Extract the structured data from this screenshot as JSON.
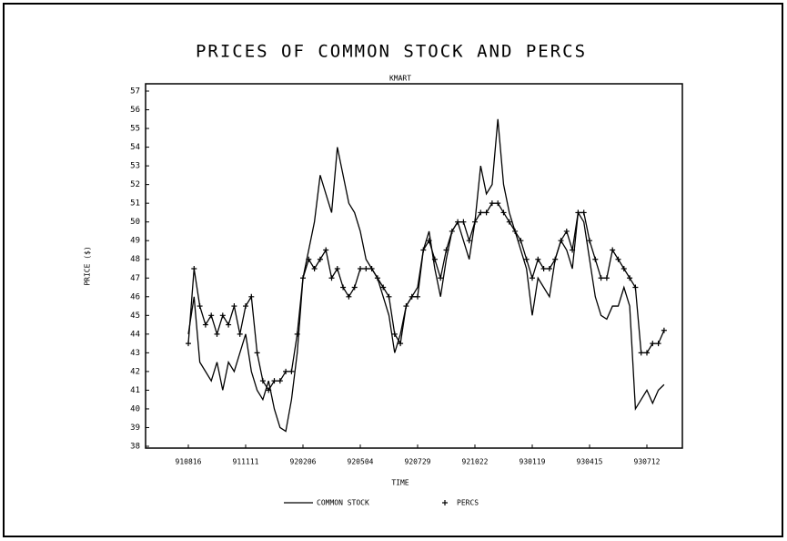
{
  "chart_data": {
    "type": "line",
    "title": "PRICES OF COMMON STOCK AND PERCS",
    "subtitle": "KMART",
    "x_label": "TIME",
    "y_label": "PRICE ($)",
    "categories": [
      "910816",
      null,
      null,
      null,
      null,
      null,
      null,
      null,
      null,
      null,
      "911111",
      null,
      null,
      null,
      null,
      null,
      null,
      null,
      null,
      null,
      "920206",
      null,
      null,
      null,
      null,
      null,
      null,
      null,
      null,
      null,
      "920504",
      null,
      null,
      null,
      null,
      null,
      null,
      null,
      null,
      null,
      "920729",
      null,
      null,
      null,
      null,
      null,
      null,
      null,
      null,
      null,
      "921022",
      null,
      null,
      null,
      null,
      null,
      null,
      null,
      null,
      null,
      "930119",
      null,
      null,
      null,
      null,
      null,
      null,
      null,
      null,
      null,
      "930415",
      null,
      null,
      null,
      null,
      null,
      null,
      null,
      null,
      null,
      "930712",
      null,
      null,
      null
    ],
    "series": [
      {
        "name": "COMMON STOCK",
        "color": "#000000",
        "marker": "none",
        "values": [
          44,
          46,
          42.5,
          42,
          41.5,
          42.5,
          41,
          42.5,
          42,
          43,
          44,
          42,
          41,
          40.5,
          41.5,
          40,
          39,
          38.8,
          40.5,
          43,
          47,
          48.5,
          50,
          52.5,
          51.5,
          50.5,
          54,
          52.5,
          51,
          50.5,
          49.5,
          48,
          47.5,
          47,
          46,
          45,
          43,
          44,
          45.5,
          46,
          46.5,
          48.5,
          49.5,
          47.5,
          46,
          48,
          49.5,
          50,
          49,
          48,
          50,
          53,
          51.5,
          52,
          55.5,
          52,
          50.5,
          49.5,
          48.5,
          47.5,
          45,
          47,
          46.5,
          46,
          48,
          49,
          48.5,
          47.5,
          50.5,
          50,
          48,
          46,
          45,
          44.8,
          45.5,
          45.5,
          46.5,
          45.5,
          40,
          40.5,
          41,
          40.3,
          41,
          41.3
        ]
      },
      {
        "name": "PERCS",
        "color": "#000000",
        "marker": "plus",
        "values": [
          43.5,
          47.5,
          45.5,
          44.5,
          45,
          44,
          45,
          44.5,
          45.5,
          44,
          45.5,
          46,
          43,
          41.5,
          41,
          41.5,
          41.5,
          42,
          42,
          44,
          47,
          48,
          47.5,
          48,
          48.5,
          47,
          47.5,
          46.5,
          46,
          46.5,
          47.5,
          47.5,
          47.5,
          47,
          46.5,
          46,
          44,
          43.5,
          45.5,
          46,
          46,
          48.5,
          49,
          48,
          47,
          48.5,
          49.5,
          50,
          50,
          49,
          50,
          50.5,
          50.5,
          51,
          51,
          50.5,
          50,
          49.5,
          49,
          48,
          47,
          48,
          47.5,
          47.5,
          48,
          49,
          49.5,
          48.5,
          50.5,
          50.5,
          49,
          48,
          47,
          47,
          48.5,
          48,
          47.5,
          47,
          46.5,
          43,
          43,
          43.5,
          43.5,
          44.2
        ]
      }
    ],
    "ylim": [
      38,
      57
    ],
    "yticks": [
      38,
      39,
      40,
      41,
      42,
      43,
      44,
      45,
      46,
      47,
      48,
      49,
      50,
      51,
      52,
      53,
      54,
      55,
      56,
      57
    ],
    "legend": "bottom"
  }
}
